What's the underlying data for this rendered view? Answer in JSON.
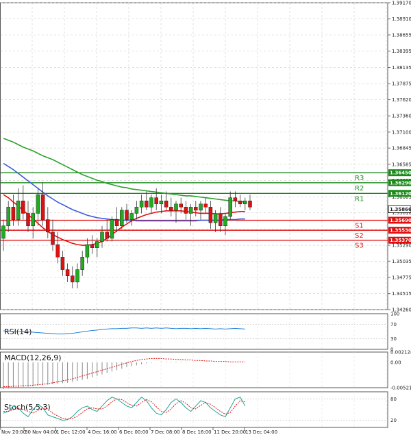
{
  "chart_data": {
    "type": "candlestick",
    "price_axis": {
      "range": [
        1.3426,
        1.3917
      ],
      "ticks": [
        "1.39170",
        "1.38910",
        "1.38655",
        "1.38395",
        "1.38135",
        "1.37875",
        "1.37620",
        "1.37360",
        "1.37100",
        "1.36845",
        "1.36585",
        "1.36325",
        "1.36065",
        "1.35810",
        "1.35550",
        "1.35290",
        "1.35035",
        "1.34775",
        "1.34515",
        "1.34260"
      ]
    },
    "x_axis": {
      "ticks": [
        "Nov 20:00",
        "30 Nov 04:00",
        "1 Dec 12:00",
        "4 Dec 16:00",
        "6 Dec 00:00",
        "7 Dec 08:00",
        "8 Dec 16:00",
        "11 Dec 20:00",
        "13 Dec 04:00"
      ]
    },
    "current_price": {
      "label": "1.35866",
      "value": 1.35866
    },
    "levels": [
      {
        "name": "R3",
        "label": "1.36450",
        "value": 1.3645,
        "color": "#1a8a1a"
      },
      {
        "name": "R2",
        "label": "1.36290",
        "value": 1.3629,
        "color": "#1a8a1a"
      },
      {
        "name": "R1",
        "label": "1.36120",
        "value": 1.3612,
        "color": "#1a8a1a"
      },
      {
        "name": "S1",
        "label": "1.35690",
        "value": 1.3569,
        "color": "#e01010"
      },
      {
        "name": "S2",
        "label": "1.35530",
        "value": 1.3553,
        "color": "#e01010"
      },
      {
        "name": "S3",
        "label": "1.35370",
        "value": 1.3537,
        "color": "#e01010"
      }
    ],
    "candles": [
      [
        1.354,
        1.357,
        1.352,
        1.356
      ],
      [
        1.356,
        1.36,
        1.355,
        1.359
      ],
      [
        1.359,
        1.361,
        1.356,
        1.357
      ],
      [
        1.357,
        1.362,
        1.356,
        1.36
      ],
      [
        1.36,
        1.3625,
        1.357,
        1.358
      ],
      [
        1.358,
        1.36,
        1.355,
        1.356
      ],
      [
        1.356,
        1.359,
        1.354,
        1.358
      ],
      [
        1.358,
        1.362,
        1.356,
        1.361
      ],
      [
        1.361,
        1.363,
        1.356,
        1.357
      ],
      [
        1.357,
        1.359,
        1.354,
        1.355
      ],
      [
        1.355,
        1.357,
        1.352,
        1.353
      ],
      [
        1.353,
        1.355,
        1.35,
        1.351
      ],
      [
        1.351,
        1.352,
        1.348,
        1.349
      ],
      [
        1.349,
        1.35,
        1.347,
        1.348
      ],
      [
        1.348,
        1.3495,
        1.346,
        1.347
      ],
      [
        1.347,
        1.35,
        1.346,
        1.349
      ],
      [
        1.349,
        1.352,
        1.348,
        1.351
      ],
      [
        1.351,
        1.354,
        1.35,
        1.353
      ],
      [
        1.353,
        1.3545,
        1.3515,
        1.3525
      ],
      [
        1.3525,
        1.354,
        1.351,
        1.3535
      ],
      [
        1.3535,
        1.356,
        1.3525,
        1.355
      ],
      [
        1.355,
        1.357,
        1.3535,
        1.354
      ],
      [
        1.354,
        1.3575,
        1.3535,
        1.357
      ],
      [
        1.357,
        1.359,
        1.355,
        1.356
      ],
      [
        1.356,
        1.359,
        1.3555,
        1.3585
      ],
      [
        1.3585,
        1.3595,
        1.3565,
        1.357
      ],
      [
        1.357,
        1.3585,
        1.356,
        1.358
      ],
      [
        1.358,
        1.36,
        1.357,
        1.359
      ],
      [
        1.359,
        1.361,
        1.358,
        1.36
      ],
      [
        1.36,
        1.3615,
        1.3585,
        1.359
      ],
      [
        1.359,
        1.361,
        1.358,
        1.3605
      ],
      [
        1.3605,
        1.362,
        1.3585,
        1.3595
      ],
      [
        1.3595,
        1.361,
        1.358,
        1.36
      ],
      [
        1.36,
        1.3615,
        1.3585,
        1.359
      ],
      [
        1.359,
        1.3605,
        1.3575,
        1.3585
      ],
      [
        1.3585,
        1.36,
        1.3565,
        1.3595
      ],
      [
        1.3595,
        1.3605,
        1.358,
        1.359
      ],
      [
        1.359,
        1.36,
        1.357,
        1.358
      ],
      [
        1.358,
        1.3595,
        1.356,
        1.359
      ],
      [
        1.359,
        1.36,
        1.3575,
        1.3585
      ],
      [
        1.3585,
        1.36,
        1.357,
        1.3595
      ],
      [
        1.3595,
        1.3605,
        1.358,
        1.359
      ],
      [
        1.359,
        1.36,
        1.3555,
        1.3565
      ],
      [
        1.3565,
        1.3585,
        1.355,
        1.358
      ],
      [
        1.358,
        1.359,
        1.355,
        1.356
      ],
      [
        1.356,
        1.358,
        1.3545,
        1.3575
      ],
      [
        1.3575,
        1.3615,
        1.357,
        1.3605
      ],
      [
        1.3605,
        1.3615,
        1.359,
        1.36
      ],
      [
        1.36,
        1.361,
        1.359,
        1.3595
      ],
      [
        1.3595,
        1.3605,
        1.3585,
        1.36
      ],
      [
        1.36,
        1.361,
        1.3585,
        1.359
      ]
    ],
    "indicator_lines": [
      {
        "name": "green-ma",
        "color": "#2ca02c",
        "values": [
          1.37,
          1.3697,
          1.3694,
          1.369,
          1.3686,
          1.3683,
          1.368,
          1.3676,
          1.3672,
          1.3669,
          1.3666,
          1.3662,
          1.3658,
          1.3654,
          1.365,
          1.3646,
          1.3642,
          1.3639,
          1.3636,
          1.3633,
          1.3631,
          1.3628,
          1.3626,
          1.3624,
          1.3622,
          1.3621,
          1.3619,
          1.3618,
          1.3617,
          1.3616,
          1.3615,
          1.3614,
          1.3613,
          1.3612,
          1.3611,
          1.361,
          1.3609,
          1.3608,
          1.3608,
          1.3607,
          1.3606,
          1.3605,
          1.3604,
          1.3603,
          1.3602,
          1.3601,
          1.36,
          1.36,
          1.3599,
          1.3598
        ]
      },
      {
        "name": "blue-ma",
        "color": "#3b5bd9",
        "values": [
          1.366,
          1.3655,
          1.365,
          1.3644,
          1.3638,
          1.3632,
          1.3626,
          1.362,
          1.3614,
          1.3608,
          1.3603,
          1.3598,
          1.3594,
          1.359,
          1.3586,
          1.3583,
          1.358,
          1.3577,
          1.3575,
          1.3573,
          1.3572,
          1.3571,
          1.357,
          1.357,
          1.3569,
          1.3569,
          1.3569,
          1.3568,
          1.3568,
          1.3568,
          1.3568,
          1.3568,
          1.3568,
          1.3568,
          1.3568,
          1.3568,
          1.3568,
          1.3568,
          1.3568,
          1.3568,
          1.3569,
          1.3569,
          1.3569,
          1.3569,
          1.3569,
          1.357,
          1.357,
          1.357,
          1.3571,
          1.3571
        ]
      },
      {
        "name": "red-ma",
        "color": "#e01010",
        "values": [
          1.361,
          1.3605,
          1.3598,
          1.3592,
          1.3585,
          1.3578,
          1.3571,
          1.3564,
          1.3557,
          1.3551,
          1.3546,
          1.3542,
          1.3538,
          1.3535,
          1.3532,
          1.353,
          1.3529,
          1.3529,
          1.353,
          1.3532,
          1.3535,
          1.354,
          1.3546,
          1.3552,
          1.3558,
          1.3563,
          1.3568,
          1.3572,
          1.3575,
          1.3578,
          1.358,
          1.3582,
          1.3583,
          1.3584,
          1.3584,
          1.3584,
          1.3584,
          1.3583,
          1.3582,
          1.3581,
          1.358,
          1.358,
          1.358,
          1.3579,
          1.3579,
          1.358,
          1.3581,
          1.3582,
          1.3583,
          1.3583
        ]
      }
    ],
    "rsi": {
      "label": "RSI(14)",
      "ticks": [
        "100",
        "70",
        "30",
        "0"
      ],
      "values": [
        52,
        51,
        50,
        49,
        50,
        49,
        48,
        47,
        46,
        45,
        44,
        43,
        43,
        44,
        45,
        47,
        49,
        51,
        53,
        54,
        56,
        57,
        58,
        58,
        59,
        59,
        60,
        60,
        59,
        60,
        59,
        60,
        59,
        60,
        59,
        58,
        59,
        59,
        58,
        59,
        58,
        59,
        58,
        57,
        58,
        57,
        58,
        59,
        58,
        57
      ]
    },
    "macd": {
      "label": "MACD(12,26,9)",
      "ticks": [
        "0.002128",
        "0.00",
        "-0.005213"
      ],
      "histogram": [
        -0.0055,
        -0.0054,
        -0.0053,
        -0.0052,
        -0.0051,
        -0.005,
        -0.0049,
        -0.0048,
        -0.0047,
        -0.0046,
        -0.0045,
        -0.0044,
        -0.0043,
        -0.0042,
        -0.004,
        -0.0038,
        -0.0036,
        -0.0034,
        -0.0031,
        -0.0028,
        -0.0025,
        -0.0022,
        -0.0019,
        -0.0016,
        -0.0013,
        -0.001,
        -0.0008,
        -0.0006,
        -0.0004,
        -0.0002,
        -0.0001,
        0.0,
        0.0001,
        0.0001,
        0.0001,
        0.0001,
        0.0001,
        0.0001,
        0.0,
        0.0,
        0.0,
        0.0,
        0.0,
        0.0,
        0.0,
        0.0,
        0.0,
        0.0,
        0.0,
        0.0
      ],
      "signal": [
        -0.005,
        -0.005,
        -0.0049,
        -0.0049,
        -0.0048,
        -0.0048,
        -0.0047,
        -0.0046,
        -0.0045,
        -0.0044,
        -0.0042,
        -0.004,
        -0.0038,
        -0.0036,
        -0.0034,
        -0.0031,
        -0.0028,
        -0.0025,
        -0.0022,
        -0.0019,
        -0.0016,
        -0.0013,
        -0.001,
        -0.0007,
        -0.0004,
        -0.0001,
        0.0002,
        0.0004,
        0.0006,
        0.0007,
        0.0008,
        0.0008,
        0.0008,
        0.0007,
        0.0007,
        0.0006,
        0.0006,
        0.0005,
        0.0005,
        0.0004,
        0.0004,
        0.0003,
        0.0003,
        0.0002,
        0.0002,
        0.0002,
        0.0001,
        0.0001,
        0.0001,
        0.0001
      ]
    },
    "stoch": {
      "label": "Stoch(5,5,3)",
      "ticks": [
        "80",
        "20"
      ],
      "main": [
        40,
        45,
        60,
        55,
        40,
        30,
        50,
        65,
        55,
        35,
        30,
        25,
        20,
        22,
        30,
        45,
        55,
        60,
        50,
        45,
        60,
        75,
        85,
        80,
        70,
        60,
        55,
        70,
        85,
        75,
        55,
        40,
        35,
        50,
        70,
        80,
        70,
        55,
        45,
        60,
        75,
        70,
        55,
        45,
        35,
        30,
        55,
        80,
        85,
        60
      ],
      "signal": [
        45,
        45,
        50,
        53,
        50,
        45,
        40,
        48,
        55,
        52,
        40,
        32,
        25,
        23,
        25,
        32,
        42,
        52,
        55,
        52,
        52,
        60,
        72,
        80,
        78,
        70,
        62,
        60,
        70,
        78,
        72,
        58,
        45,
        42,
        52,
        67,
        75,
        68,
        55,
        52,
        62,
        70,
        65,
        55,
        45,
        37,
        42,
        60,
        75,
        72
      ]
    }
  }
}
